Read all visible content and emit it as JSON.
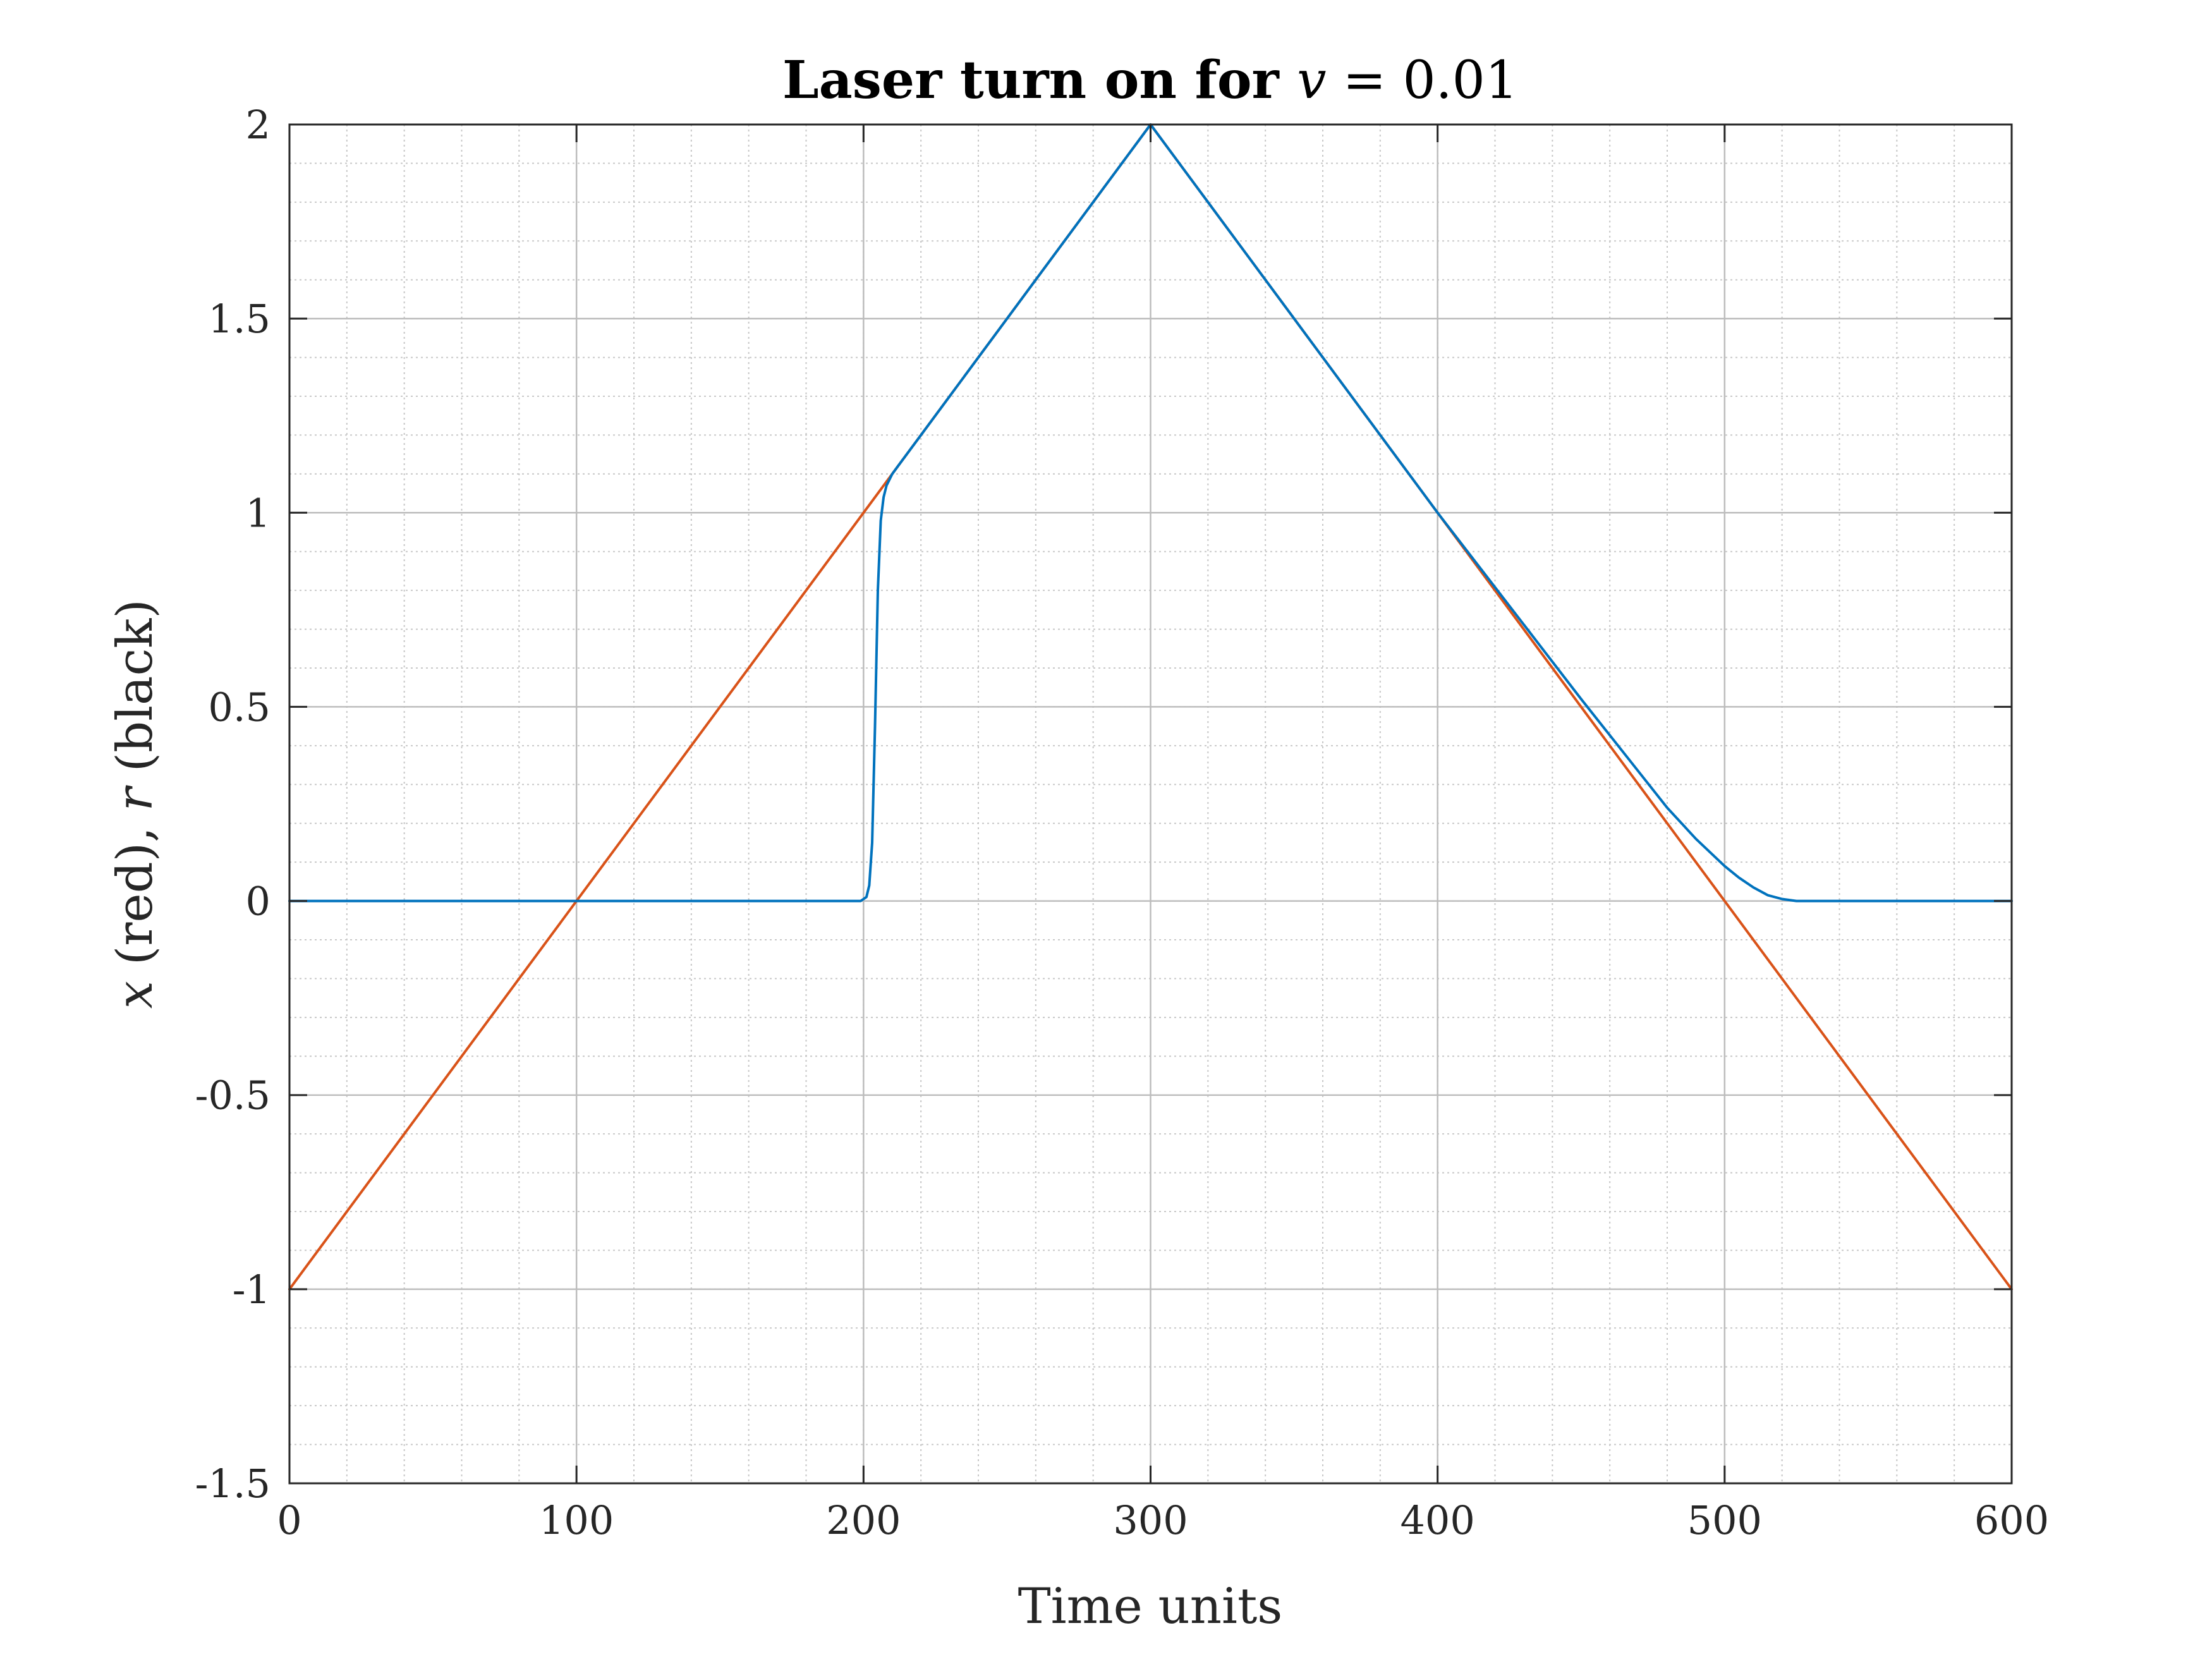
{
  "chart_data": {
    "type": "line",
    "title": {
      "bold": "Laser turn on for ",
      "var": "v",
      "rest": " = 0.01"
    },
    "xlabel": "Time units",
    "ylabel": {
      "v1": "x",
      "t1": " (red), ",
      "v2": "r",
      "t2": " (black)"
    },
    "xlim": [
      0,
      600
    ],
    "ylim": [
      -1.5,
      2
    ],
    "xticks": [
      0,
      100,
      200,
      300,
      400,
      500,
      600
    ],
    "xtick_labels": [
      "0",
      "100",
      "200",
      "300",
      "400",
      "500",
      "600"
    ],
    "yticks": [
      -1.5,
      -1,
      -0.5,
      0,
      0.5,
      1,
      1.5,
      2
    ],
    "ytick_labels": [
      "-1.5",
      "-1",
      "-0.5",
      "0",
      "0.5",
      "1",
      "1.5",
      "2"
    ],
    "grid": true,
    "minor_grid": true,
    "series": [
      {
        "color": "#d95319",
        "x": [
          0,
          300,
          600
        ],
        "y": [
          -1,
          2,
          -1
        ]
      },
      {
        "color": "#0072bd",
        "x": [
          0,
          199,
          201,
          202,
          203,
          204,
          205,
          206,
          207,
          208,
          210,
          212,
          215,
          220,
          300,
          350,
          400,
          450,
          480,
          490,
          500,
          505,
          510,
          515,
          520,
          525,
          530,
          600
        ],
        "y": [
          0,
          0,
          0.01,
          0.04,
          0.15,
          0.45,
          0.8,
          0.98,
          1.04,
          1.07,
          1.1,
          1.12,
          1.15,
          1.2,
          2,
          1.5,
          1.0,
          0.52,
          0.24,
          0.16,
          0.09,
          0.06,
          0.035,
          0.015,
          0.005,
          0,
          0,
          0
        ]
      }
    ]
  }
}
